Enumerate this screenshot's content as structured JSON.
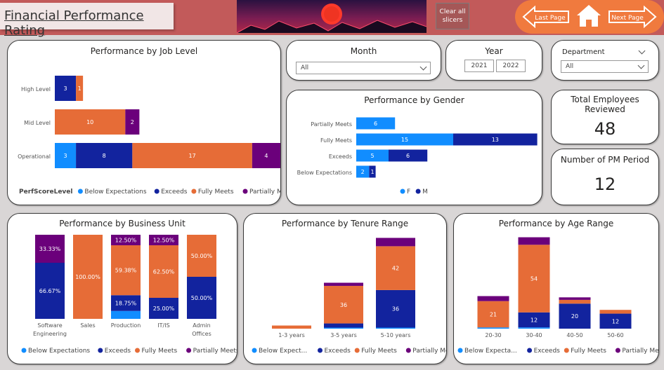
{
  "header": {
    "title": "Financial Performance Rating",
    "clear_label": "Clear all slicers",
    "last_page": "Last Page",
    "next_page": "Next Page"
  },
  "colors": {
    "below": "#118dff",
    "exceeds": "#12239e",
    "fully": "#e66c37",
    "partially": "#6b007b"
  },
  "slicers": {
    "month": {
      "title": "Month",
      "value": "All"
    },
    "year": {
      "title": "Year",
      "options": [
        "2021",
        "2022"
      ]
    },
    "department": {
      "title": "Department",
      "value": "All"
    }
  },
  "kpis": {
    "total": {
      "title": "Total Employees Reviewed",
      "value": "48"
    },
    "periods": {
      "title": "Number of PM Period",
      "value": "12"
    }
  },
  "chart_data": [
    {
      "id": "job_level",
      "type": "bar",
      "title": "Performance by Job Level",
      "orientation": "horizontal",
      "stacked": true,
      "categories": [
        "High Level",
        "Mid Level",
        "Operational"
      ],
      "series": [
        {
          "name": "Below Expectations",
          "values": [
            0,
            0,
            3
          ]
        },
        {
          "name": "Exceeds",
          "values": [
            3,
            0,
            8
          ]
        },
        {
          "name": "Fully Meets",
          "values": [
            1,
            10,
            17
          ]
        },
        {
          "name": "Partially Meets",
          "values": [
            0,
            2,
            4
          ]
        }
      ],
      "legend_title": "PerfScoreLevel",
      "legend_position": "bottom",
      "xlim": [
        0,
        32
      ]
    },
    {
      "id": "gender",
      "type": "bar",
      "title": "Performance by Gender",
      "orientation": "horizontal",
      "stacked": true,
      "categories": [
        "Partially Meets",
        "Fully Meets",
        "Exceeds",
        "Below Expectations"
      ],
      "series": [
        {
          "name": "F",
          "values": [
            6,
            15,
            5,
            2
          ]
        },
        {
          "name": "M",
          "values": [
            0,
            13,
            6,
            1
          ]
        }
      ],
      "legend_position": "bottom",
      "xlim": [
        0,
        30
      ]
    },
    {
      "id": "business_unit",
      "type": "bar",
      "title": "Performance by Business Unit",
      "stacked": true,
      "percent": true,
      "categories": [
        "Software Engineering",
        "Sales",
        "Production",
        "IT/IS",
        "Admin Offices"
      ],
      "series": [
        {
          "name": "Below Expectations",
          "values": [
            0,
            0,
            9.37,
            0,
            0
          ],
          "labels": [
            "",
            "",
            "",
            "",
            ""
          ]
        },
        {
          "name": "Exceeds",
          "values": [
            66.67,
            0,
            18.75,
            25,
            50
          ],
          "labels": [
            "66.67%",
            "",
            "18.75%",
            "25.00%",
            "50.00%"
          ]
        },
        {
          "name": "Fully Meets",
          "values": [
            0,
            100,
            59.38,
            62.5,
            50
          ],
          "labels": [
            "",
            "100.00%",
            "59.38%",
            "62.50%",
            "50.00%"
          ]
        },
        {
          "name": "Partially Meets",
          "values": [
            33.33,
            0,
            12.5,
            12.5,
            0
          ],
          "labels": [
            "33.33%",
            "",
            "12.50%",
            "12.50%",
            ""
          ]
        }
      ],
      "legend_position": "bottom",
      "ylim": [
        0,
        100
      ]
    },
    {
      "id": "tenure",
      "type": "bar",
      "title": "Performance by Tenure Range",
      "stacked": true,
      "categories": [
        "1-3 years",
        "3-5 years",
        "5-10 years"
      ],
      "series": [
        {
          "name": "Below Expectations",
          "values": [
            0,
            1,
            1
          ]
        },
        {
          "name": "Exceeds",
          "values": [
            0,
            4,
            36
          ]
        },
        {
          "name": "Fully Meets",
          "values": [
            3,
            36,
            42
          ]
        },
        {
          "name": "Partially Meets",
          "values": [
            0,
            3,
            8
          ]
        }
      ],
      "data_labels": [
        {
          "series": "Exceeds",
          "category": "5-10 years",
          "text": "36"
        },
        {
          "series": "Fully Meets",
          "category": "3-5 years",
          "text": "36"
        },
        {
          "series": "Fully Meets",
          "category": "5-10 years",
          "text": "42"
        }
      ],
      "legend": [
        "Below Expect...",
        "Exceeds",
        "Fully Meets",
        "Partially Me..."
      ],
      "legend_position": "bottom",
      "ylim": [
        0,
        90
      ]
    },
    {
      "id": "age",
      "type": "bar",
      "title": "Performance by Age Range",
      "stacked": true,
      "categories": [
        "20-30",
        "30-40",
        "40-50",
        "50-60"
      ],
      "series": [
        {
          "name": "Below Expectations",
          "values": [
            1,
            1,
            0,
            0
          ]
        },
        {
          "name": "Exceeds",
          "values": [
            0,
            12,
            20,
            12
          ]
        },
        {
          "name": "Fully Meets",
          "values": [
            21,
            54,
            3,
            3
          ]
        },
        {
          "name": "Partially Meets",
          "values": [
            4,
            6,
            2,
            0
          ]
        }
      ],
      "data_labels": [
        {
          "series": "Fully Meets",
          "category": "20-30",
          "text": "21"
        },
        {
          "series": "Exceeds",
          "category": "30-40",
          "text": "12"
        },
        {
          "series": "Fully Meets",
          "category": "30-40",
          "text": "54"
        },
        {
          "series": "Exceeds",
          "category": "40-50",
          "text": "20"
        },
        {
          "series": "Exceeds",
          "category": "50-60",
          "text": "12"
        }
      ],
      "legend": [
        "Below Expecta...",
        "Exceeds",
        "Fully Meets",
        "Partially Meets"
      ],
      "legend_position": "bottom",
      "ylim": [
        0,
        75
      ]
    }
  ]
}
